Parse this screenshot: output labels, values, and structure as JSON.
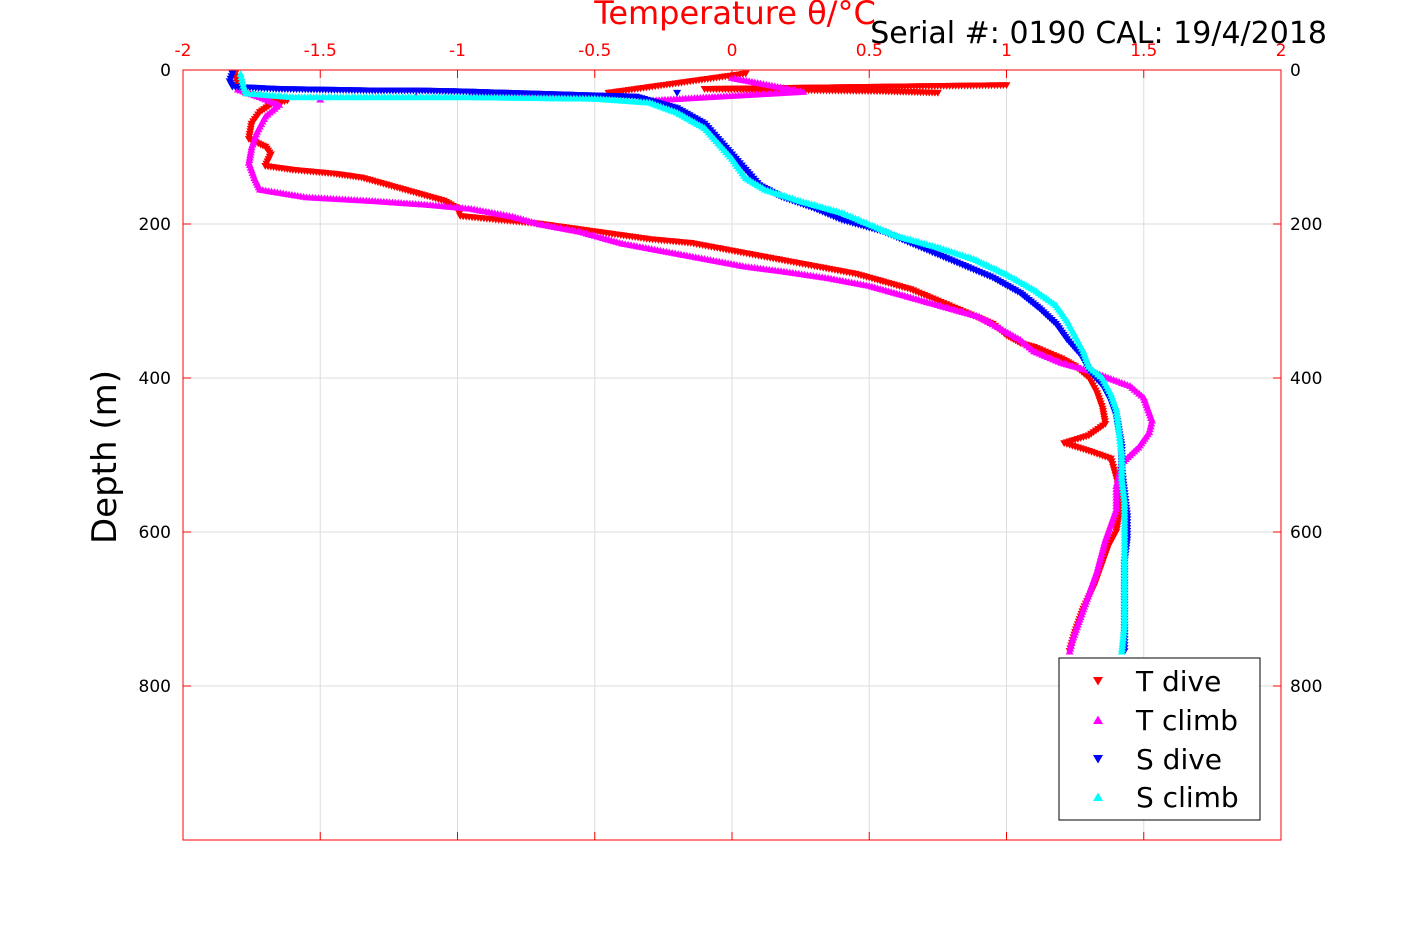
{
  "chart_data": {
    "type": "scatter",
    "title": "Temperature θ/°C",
    "subtitle": "Serial #: 0190  CAL: 19/4/2018",
    "xlabel": "Temperature θ/°C",
    "ylabel": "Depth (m)",
    "xlim": [
      -2,
      2
    ],
    "ylim": [
      0,
      1000
    ],
    "y_reversed": true,
    "x_ticks": [
      "-2",
      "-1.5",
      "-1",
      "-0.5",
      "0",
      "0.5",
      "1",
      "1.5",
      "2"
    ],
    "y_ticks": [
      "0",
      "200",
      "400",
      "600",
      "800"
    ],
    "grid": true,
    "legend_position": "bottom-right",
    "colors": {
      "axis": "#ff0000",
      "grid": "#dddddd"
    },
    "series": [
      {
        "name": "T dive",
        "color": "#ff0000",
        "marker": "triangle-down",
        "points": [
          [
            -1.81,
            5
          ],
          [
            -1.8,
            20
          ],
          [
            -1.78,
            30
          ],
          [
            -1.7,
            35
          ],
          [
            -1.62,
            40
          ],
          [
            -1.68,
            45
          ],
          [
            -1.72,
            55
          ],
          [
            -1.75,
            70
          ],
          [
            -1.76,
            90
          ],
          [
            -1.7,
            100
          ],
          [
            -1.68,
            110
          ],
          [
            -1.7,
            125
          ],
          [
            -1.6,
            130
          ],
          [
            -1.45,
            135
          ],
          [
            -1.35,
            140
          ],
          [
            -1.25,
            150
          ],
          [
            -1.15,
            160
          ],
          [
            -1.05,
            170
          ],
          [
            -1.0,
            180
          ],
          [
            -0.99,
            190
          ],
          [
            -0.85,
            195
          ],
          [
            -0.7,
            200
          ],
          [
            -0.5,
            210
          ],
          [
            -0.3,
            220
          ],
          [
            -0.15,
            225
          ],
          [
            0.0,
            235
          ],
          [
            0.15,
            245
          ],
          [
            0.3,
            255
          ],
          [
            0.45,
            265
          ],
          [
            0.55,
            275
          ],
          [
            0.65,
            285
          ],
          [
            0.75,
            300
          ],
          [
            0.85,
            315
          ],
          [
            0.95,
            330
          ],
          [
            1.0,
            345
          ],
          [
            1.05,
            355
          ],
          [
            1.1,
            360
          ],
          [
            1.2,
            375
          ],
          [
            1.25,
            385
          ],
          [
            1.3,
            400
          ],
          [
            1.33,
            420
          ],
          [
            1.35,
            440
          ],
          [
            1.36,
            460
          ],
          [
            1.3,
            475
          ],
          [
            1.21,
            485
          ],
          [
            1.3,
            495
          ],
          [
            1.38,
            505
          ],
          [
            1.4,
            530
          ],
          [
            1.42,
            560
          ],
          [
            1.4,
            600
          ],
          [
            1.37,
            620
          ],
          [
            1.35,
            640
          ],
          [
            1.32,
            670
          ],
          [
            1.28,
            700
          ],
          [
            1.25,
            730
          ],
          [
            1.23,
            755
          ],
          [
            1.0,
            20
          ],
          [
            -0.1,
            25
          ],
          [
            0.55,
            28
          ],
          [
            0.75,
            30
          ],
          [
            0.05,
            5
          ],
          [
            -0.45,
            30
          ]
        ]
      },
      {
        "name": "T climb",
        "color": "#ff00ff",
        "marker": "triangle-up",
        "points": [
          [
            -1.8,
            25
          ],
          [
            -1.72,
            35
          ],
          [
            -1.65,
            45
          ],
          [
            -1.7,
            60
          ],
          [
            -1.73,
            80
          ],
          [
            -1.75,
            100
          ],
          [
            -1.76,
            120
          ],
          [
            -1.74,
            140
          ],
          [
            -1.72,
            155
          ],
          [
            -1.55,
            165
          ],
          [
            -1.3,
            170
          ],
          [
            -1.1,
            175
          ],
          [
            -0.95,
            180
          ],
          [
            -0.8,
            190
          ],
          [
            -0.7,
            200
          ],
          [
            -0.55,
            210
          ],
          [
            -0.4,
            225
          ],
          [
            -0.25,
            235
          ],
          [
            -0.1,
            245
          ],
          [
            0.05,
            255
          ],
          [
            0.2,
            262
          ],
          [
            0.35,
            270
          ],
          [
            0.5,
            280
          ],
          [
            0.6,
            290
          ],
          [
            0.7,
            300
          ],
          [
            0.8,
            310
          ],
          [
            0.9,
            320
          ],
          [
            0.95,
            330
          ],
          [
            1.05,
            350
          ],
          [
            1.1,
            365
          ],
          [
            1.2,
            380
          ],
          [
            1.3,
            390
          ],
          [
            1.45,
            410
          ],
          [
            1.5,
            425
          ],
          [
            1.53,
            455
          ],
          [
            1.52,
            470
          ],
          [
            1.48,
            490
          ],
          [
            1.42,
            510
          ],
          [
            1.4,
            540
          ],
          [
            1.4,
            570
          ],
          [
            1.36,
            610
          ],
          [
            1.33,
            650
          ],
          [
            1.3,
            680
          ],
          [
            1.27,
            710
          ],
          [
            1.24,
            740
          ],
          [
            1.23,
            755
          ],
          [
            -1.5,
            38
          ],
          [
            -1.15,
            33
          ],
          [
            -0.95,
            32
          ],
          [
            -0.5,
            35
          ],
          [
            0.0,
            10
          ],
          [
            0.26,
            28
          ],
          [
            -0.33,
            40
          ]
        ]
      },
      {
        "name": "S dive",
        "color": "#0000ff",
        "marker": "triangle-down",
        "points": [
          [
            -1.82,
            5
          ],
          [
            -1.83,
            15
          ],
          [
            -1.82,
            22
          ],
          [
            -1.65,
            25
          ],
          [
            -1.3,
            27
          ],
          [
            -1.15,
            27
          ],
          [
            -1.0,
            28
          ],
          [
            -0.35,
            35
          ],
          [
            -0.3,
            40
          ],
          [
            -0.2,
            50
          ],
          [
            -0.1,
            70
          ],
          [
            -0.05,
            90
          ],
          [
            0.0,
            110
          ],
          [
            0.05,
            130
          ],
          [
            0.1,
            150
          ],
          [
            0.18,
            165
          ],
          [
            0.3,
            180
          ],
          [
            0.4,
            195
          ],
          [
            0.55,
            210
          ],
          [
            0.65,
            225
          ],
          [
            0.75,
            240
          ],
          [
            0.85,
            255
          ],
          [
            0.95,
            270
          ],
          [
            1.05,
            290
          ],
          [
            1.12,
            310
          ],
          [
            1.18,
            330
          ],
          [
            1.22,
            350
          ],
          [
            1.27,
            370
          ],
          [
            1.3,
            390
          ],
          [
            1.35,
            410
          ],
          [
            1.38,
            430
          ],
          [
            1.4,
            450
          ],
          [
            1.41,
            470
          ],
          [
            1.42,
            490
          ],
          [
            1.42,
            520
          ],
          [
            1.43,
            550
          ],
          [
            1.44,
            580
          ],
          [
            1.44,
            610
          ],
          [
            1.43,
            640
          ],
          [
            1.43,
            680
          ],
          [
            1.43,
            720
          ],
          [
            1.43,
            755
          ],
          [
            -0.2,
            30
          ]
        ]
      },
      {
        "name": "S climb",
        "color": "#00ffff",
        "marker": "triangle-up",
        "points": [
          [
            -1.79,
            5
          ],
          [
            -1.78,
            20
          ],
          [
            -1.77,
            30
          ],
          [
            -1.6,
            35
          ],
          [
            -1.2,
            35
          ],
          [
            -0.95,
            35
          ],
          [
            -0.75,
            36
          ],
          [
            -0.5,
            37
          ],
          [
            -0.3,
            42
          ],
          [
            -0.2,
            55
          ],
          [
            -0.1,
            75
          ],
          [
            -0.05,
            95
          ],
          [
            0.0,
            115
          ],
          [
            0.05,
            140
          ],
          [
            0.12,
            155
          ],
          [
            0.25,
            170
          ],
          [
            0.4,
            185
          ],
          [
            0.5,
            200
          ],
          [
            0.6,
            215
          ],
          [
            0.75,
            230
          ],
          [
            0.88,
            245
          ],
          [
            1.0,
            265
          ],
          [
            1.1,
            285
          ],
          [
            1.18,
            305
          ],
          [
            1.22,
            325
          ],
          [
            1.25,
            345
          ],
          [
            1.28,
            365
          ],
          [
            1.3,
            385
          ],
          [
            1.35,
            400
          ],
          [
            1.38,
            420
          ],
          [
            1.4,
            440
          ],
          [
            1.41,
            470
          ],
          [
            1.42,
            500
          ],
          [
            1.42,
            530
          ],
          [
            1.43,
            560
          ],
          [
            1.43,
            600
          ],
          [
            1.43,
            640
          ],
          [
            1.43,
            680
          ],
          [
            1.43,
            720
          ],
          [
            1.42,
            755
          ]
        ]
      }
    ]
  }
}
